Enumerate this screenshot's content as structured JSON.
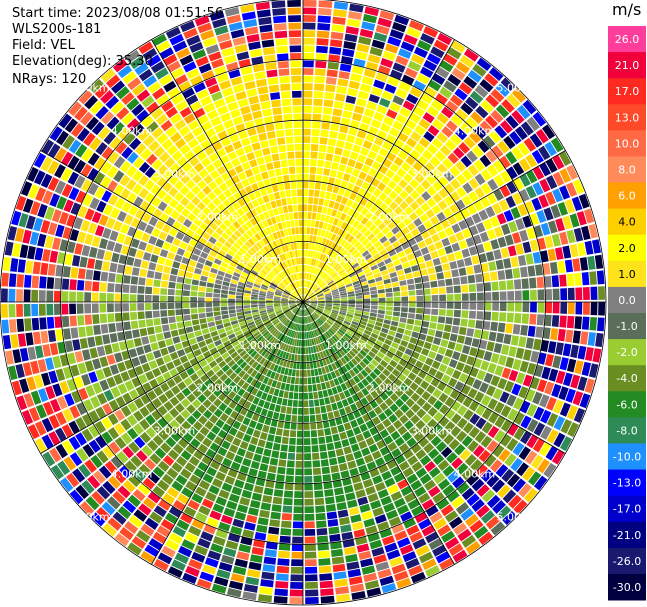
{
  "info": {
    "start_time": "Start time: 2023/08/08 01:51:56",
    "instrument": "WLS200s-181",
    "field": "Field: VEL",
    "elevation": "Elevation(deg): 35.30",
    "nrays": "NRays: 120"
  },
  "colorbar": {
    "unit": "m/s",
    "levels": [
      {
        "label": "26.0",
        "color": "#ff3d9a"
      },
      {
        "label": "21.0",
        "color": "#f2003c"
      },
      {
        "label": "17.0",
        "color": "#ff2a1f"
      },
      {
        "label": "13.0",
        "color": "#ff4a2a"
      },
      {
        "label": "10.0",
        "color": "#ff6a45"
      },
      {
        "label": "8.0",
        "color": "#ff8a5a"
      },
      {
        "label": "6.0",
        "color": "#ffa000"
      },
      {
        "label": "4.0",
        "color": "#ffd000"
      },
      {
        "label": "2.0",
        "color": "#ffff00"
      },
      {
        "label": "1.0",
        "color": "#ffe31a"
      },
      {
        "label": "0.0",
        "color": "#808080"
      },
      {
        "label": "-1.0",
        "color": "#5a6e5a"
      },
      {
        "label": "-2.0",
        "color": "#9acd32"
      },
      {
        "label": "-4.0",
        "color": "#6b8e23"
      },
      {
        "label": "-6.0",
        "color": "#228b22"
      },
      {
        "label": "-8.0",
        "color": "#2e8b57"
      },
      {
        "label": "-10.0",
        "color": "#1e90ff"
      },
      {
        "label": "-13.0",
        "color": "#0000ff"
      },
      {
        "label": "-17.0",
        "color": "#0000cd"
      },
      {
        "label": "-21.0",
        "color": "#000080"
      },
      {
        "label": "-26.0",
        "color": "#191970"
      },
      {
        "label": "-30.0",
        "color": "#000040"
      }
    ]
  },
  "chart_data": {
    "type": "heatmap",
    "projection": "polar (PPI scan)",
    "field": "VEL",
    "units": "m/s",
    "elevation_deg": 35.3,
    "nrays": 120,
    "range_rings_km": [
      1.0,
      2.0,
      3.0,
      4.0,
      5.0
    ],
    "range_labels": [
      "1.00km",
      "2.00km",
      "3.00km",
      "4.00km",
      "5.00km"
    ],
    "max_range_km": 5.0,
    "color_range": [
      -30.0,
      26.0
    ],
    "sector_summary": [
      {
        "azimuth_range_deg": [
          270,
          90
        ],
        "dominant_velocity_ms": 3.0
      },
      {
        "azimuth_range_deg": [
          90,
          270
        ],
        "dominant_velocity_ms": -4.0
      }
    ]
  }
}
